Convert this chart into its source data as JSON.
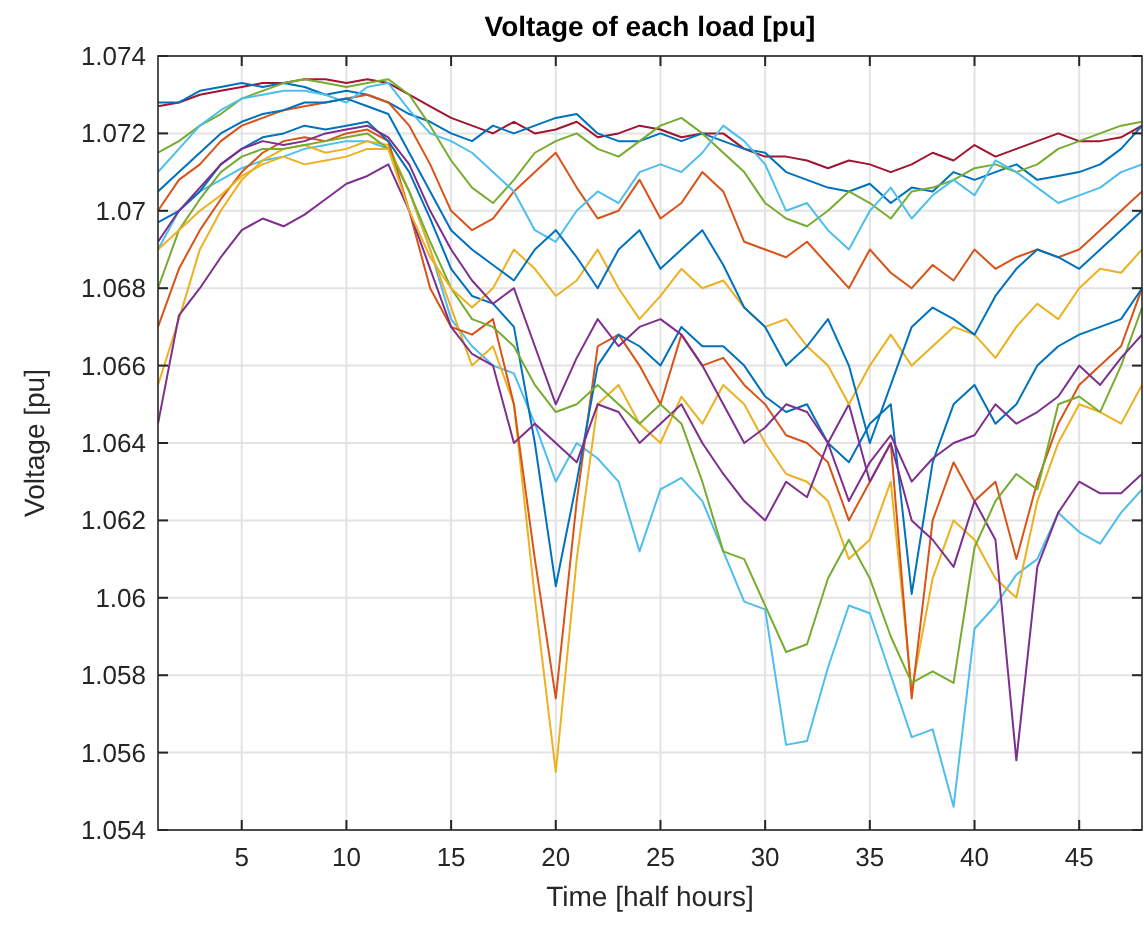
{
  "chart_data": {
    "type": "line",
    "title": "Voltage of each load [pu]",
    "xlabel": "Time [half hours]",
    "ylabel": "Voltage [pu]",
    "x": [
      1,
      2,
      3,
      4,
      5,
      6,
      7,
      8,
      9,
      10,
      11,
      12,
      13,
      14,
      15,
      16,
      17,
      18,
      19,
      20,
      21,
      22,
      23,
      24,
      25,
      26,
      27,
      28,
      29,
      30,
      31,
      32,
      33,
      34,
      35,
      36,
      37,
      38,
      39,
      40,
      41,
      42,
      43,
      44,
      45,
      46,
      47,
      48
    ],
    "xlim": [
      1,
      48
    ],
    "xticks": [
      5,
      10,
      15,
      20,
      25,
      30,
      35,
      40,
      45
    ],
    "ylim": [
      1.054,
      1.074
    ],
    "yticks": [
      1.054,
      1.056,
      1.058,
      1.06,
      1.062,
      1.064,
      1.066,
      1.068,
      1.07,
      1.072,
      1.074
    ],
    "grid": true,
    "series": [
      {
        "color": "#a2142f",
        "values": [
          1.0727,
          1.0728,
          1.073,
          1.0731,
          1.0732,
          1.0733,
          1.0733,
          1.0734,
          1.0734,
          1.0733,
          1.0734,
          1.0733,
          1.073,
          1.0727,
          1.0724,
          1.0722,
          1.072,
          1.0723,
          1.072,
          1.0721,
          1.0723,
          1.0719,
          1.072,
          1.0722,
          1.0721,
          1.0719,
          1.072,
          1.072,
          1.0716,
          1.0714,
          1.0714,
          1.0713,
          1.0711,
          1.0713,
          1.0712,
          1.071,
          1.0712,
          1.0715,
          1.0713,
          1.0717,
          1.0714,
          1.0716,
          1.0718,
          1.072,
          1.0718,
          1.0718,
          1.0719,
          1.0722
        ]
      },
      {
        "color": "#4dbeee",
        "values": [
          1.069,
          1.07,
          1.0705,
          1.0708,
          1.0711,
          1.0713,
          1.0714,
          1.0716,
          1.0717,
          1.0718,
          1.0718,
          1.0716,
          1.0705,
          1.069,
          1.0672,
          1.0665,
          1.066,
          1.0658,
          1.0645,
          1.063,
          1.064,
          1.0636,
          1.063,
          1.0612,
          1.0628,
          1.0631,
          1.0625,
          1.0612,
          1.0599,
          1.0597,
          1.0562,
          1.0563,
          1.0582,
          1.0598,
          1.0596,
          1.058,
          1.0564,
          1.0566,
          1.0546,
          1.0592,
          1.0598,
          1.0606,
          1.061,
          1.0622,
          1.0617,
          1.0614,
          1.0622,
          1.0628
        ]
      },
      {
        "color": "#edb120",
        "values": [
          1.0655,
          1.0672,
          1.069,
          1.07,
          1.0708,
          1.0713,
          1.0716,
          1.0717,
          1.0715,
          1.0716,
          1.0718,
          1.0717,
          1.0705,
          1.069,
          1.0675,
          1.066,
          1.0665,
          1.065,
          1.06,
          1.0555,
          1.061,
          1.065,
          1.0655,
          1.0645,
          1.064,
          1.0652,
          1.0645,
          1.0655,
          1.065,
          1.064,
          1.0632,
          1.063,
          1.0625,
          1.061,
          1.0615,
          1.063,
          1.0576,
          1.0605,
          1.062,
          1.0615,
          1.0605,
          1.06,
          1.0625,
          1.064,
          1.065,
          1.0648,
          1.0645,
          1.0655
        ]
      },
      {
        "color": "#d95319",
        "values": [
          1.067,
          1.0685,
          1.0695,
          1.0703,
          1.071,
          1.0715,
          1.0718,
          1.0719,
          1.0718,
          1.072,
          1.0721,
          1.0718,
          1.07,
          1.068,
          1.067,
          1.0668,
          1.0672,
          1.065,
          1.061,
          1.0574,
          1.0625,
          1.0665,
          1.0668,
          1.066,
          1.065,
          1.0668,
          1.066,
          1.0662,
          1.0655,
          1.065,
          1.0642,
          1.064,
          1.0635,
          1.062,
          1.063,
          1.064,
          1.0574,
          1.062,
          1.0635,
          1.0625,
          1.063,
          1.061,
          1.063,
          1.0645,
          1.0655,
          1.066,
          1.0665,
          1.068
        ]
      },
      {
        "color": "#0072bd",
        "values": [
          1.0697,
          1.07,
          1.0705,
          1.0712,
          1.0716,
          1.0719,
          1.072,
          1.0722,
          1.0721,
          1.0722,
          1.0723,
          1.0718,
          1.071,
          1.0698,
          1.0685,
          1.0678,
          1.0676,
          1.067,
          1.064,
          1.0603,
          1.063,
          1.066,
          1.0668,
          1.0665,
          1.066,
          1.067,
          1.0665,
          1.0665,
          1.066,
          1.0652,
          1.0648,
          1.065,
          1.064,
          1.0635,
          1.0645,
          1.065,
          1.0601,
          1.0635,
          1.065,
          1.0655,
          1.0645,
          1.065,
          1.066,
          1.0665,
          1.0668,
          1.067,
          1.0672,
          1.068
        ]
      },
      {
        "color": "#7e2f8e",
        "values": [
          1.0645,
          1.0673,
          1.068,
          1.0688,
          1.0695,
          1.0698,
          1.0696,
          1.0699,
          1.0703,
          1.0707,
          1.0709,
          1.0712,
          1.07,
          1.0685,
          1.067,
          1.0663,
          1.066,
          1.064,
          1.0645,
          1.064,
          1.0635,
          1.065,
          1.0648,
          1.064,
          1.0645,
          1.065,
          1.064,
          1.0632,
          1.0625,
          1.062,
          1.063,
          1.0626,
          1.064,
          1.065,
          1.063,
          1.064,
          1.062,
          1.0615,
          1.0608,
          1.0625,
          1.0615,
          1.0558,
          1.0608,
          1.0622,
          1.063,
          1.0627,
          1.0627,
          1.0632
        ]
      },
      {
        "color": "#77ac30",
        "values": [
          1.068,
          1.0695,
          1.0703,
          1.071,
          1.0714,
          1.0716,
          1.0716,
          1.0717,
          1.0718,
          1.0719,
          1.072,
          1.0716,
          1.0705,
          1.0692,
          1.068,
          1.0672,
          1.067,
          1.0665,
          1.0655,
          1.0648,
          1.065,
          1.0655,
          1.065,
          1.0645,
          1.065,
          1.0645,
          1.063,
          1.0612,
          1.061,
          1.0598,
          1.0586,
          1.0588,
          1.0605,
          1.0615,
          1.0605,
          1.059,
          1.0578,
          1.0581,
          1.0578,
          1.0613,
          1.0625,
          1.0632,
          1.0628,
          1.065,
          1.0652,
          1.0648,
          1.066,
          1.0675
        ]
      },
      {
        "color": "#0072bd",
        "values": [
          1.0728,
          1.0728,
          1.0731,
          1.0732,
          1.0733,
          1.0732,
          1.0733,
          1.0732,
          1.073,
          1.0731,
          1.073,
          1.0728,
          1.0725,
          1.0723,
          1.072,
          1.0718,
          1.0722,
          1.072,
          1.0722,
          1.0724,
          1.0725,
          1.072,
          1.0718,
          1.0718,
          1.072,
          1.0718,
          1.072,
          1.0718,
          1.0716,
          1.0715,
          1.071,
          1.0708,
          1.0706,
          1.0705,
          1.0707,
          1.0702,
          1.0706,
          1.0705,
          1.071,
          1.0708,
          1.071,
          1.0712,
          1.0708,
          1.0709,
          1.071,
          1.0712,
          1.0716,
          1.0722
        ]
      },
      {
        "color": "#77ac30",
        "values": [
          1.0715,
          1.0718,
          1.0722,
          1.0725,
          1.0729,
          1.0731,
          1.0733,
          1.0734,
          1.0733,
          1.0732,
          1.0733,
          1.0734,
          1.073,
          1.0722,
          1.0713,
          1.0706,
          1.0702,
          1.0708,
          1.0715,
          1.0718,
          1.072,
          1.0716,
          1.0714,
          1.0718,
          1.0722,
          1.0724,
          1.072,
          1.0715,
          1.071,
          1.0702,
          1.0698,
          1.0696,
          1.07,
          1.0705,
          1.0702,
          1.0698,
          1.0705,
          1.0706,
          1.0708,
          1.0711,
          1.0712,
          1.071,
          1.0712,
          1.0716,
          1.0718,
          1.072,
          1.0722,
          1.0723
        ]
      },
      {
        "color": "#d95319",
        "values": [
          1.07,
          1.0708,
          1.0712,
          1.0718,
          1.0722,
          1.0724,
          1.0726,
          1.0727,
          1.0728,
          1.0729,
          1.073,
          1.0728,
          1.0722,
          1.0712,
          1.07,
          1.0695,
          1.0698,
          1.0705,
          1.071,
          1.0715,
          1.0706,
          1.0698,
          1.07,
          1.0708,
          1.0698,
          1.0702,
          1.071,
          1.0705,
          1.0692,
          1.069,
          1.0688,
          1.0692,
          1.0686,
          1.068,
          1.069,
          1.0684,
          1.068,
          1.0686,
          1.0682,
          1.069,
          1.0685,
          1.0688,
          1.069,
          1.0688,
          1.069,
          1.0695,
          1.07,
          1.0705
        ]
      },
      {
        "color": "#4dbeee",
        "values": [
          1.071,
          1.0716,
          1.0722,
          1.0726,
          1.0729,
          1.073,
          1.0731,
          1.0731,
          1.073,
          1.0728,
          1.0732,
          1.0733,
          1.0726,
          1.072,
          1.0718,
          1.0715,
          1.071,
          1.0705,
          1.0695,
          1.0692,
          1.07,
          1.0705,
          1.0702,
          1.071,
          1.0712,
          1.071,
          1.0715,
          1.0722,
          1.0718,
          1.0712,
          1.07,
          1.0702,
          1.0695,
          1.069,
          1.07,
          1.0706,
          1.0698,
          1.0704,
          1.0708,
          1.0704,
          1.0713,
          1.071,
          1.0706,
          1.0702,
          1.0704,
          1.0706,
          1.071,
          1.0712
        ]
      },
      {
        "color": "#edb120",
        "values": [
          1.069,
          1.0695,
          1.07,
          1.0704,
          1.0709,
          1.0712,
          1.0714,
          1.0712,
          1.0713,
          1.0714,
          1.0716,
          1.0716,
          1.07,
          1.0688,
          1.068,
          1.0675,
          1.068,
          1.069,
          1.0685,
          1.0678,
          1.0682,
          1.069,
          1.068,
          1.0672,
          1.0678,
          1.0685,
          1.068,
          1.0682,
          1.0675,
          1.067,
          1.0672,
          1.0665,
          1.066,
          1.065,
          1.066,
          1.0668,
          1.066,
          1.0665,
          1.067,
          1.0668,
          1.0662,
          1.067,
          1.0676,
          1.0672,
          1.068,
          1.0685,
          1.0684,
          1.069
        ]
      },
      {
        "color": "#7e2f8e",
        "values": [
          1.0692,
          1.07,
          1.0706,
          1.0712,
          1.0716,
          1.0718,
          1.0717,
          1.0718,
          1.072,
          1.0721,
          1.0722,
          1.0719,
          1.0712,
          1.07,
          1.069,
          1.0682,
          1.0676,
          1.068,
          1.0665,
          1.065,
          1.0662,
          1.0672,
          1.0665,
          1.067,
          1.0672,
          1.0668,
          1.066,
          1.065,
          1.064,
          1.0644,
          1.065,
          1.0648,
          1.064,
          1.0625,
          1.0635,
          1.0642,
          1.063,
          1.0636,
          1.064,
          1.0642,
          1.065,
          1.0645,
          1.0648,
          1.0652,
          1.066,
          1.0655,
          1.0662,
          1.0668
        ]
      },
      {
        "color": "#0072bd",
        "values": [
          1.0705,
          1.071,
          1.0715,
          1.072,
          1.0723,
          1.0725,
          1.0726,
          1.0728,
          1.0728,
          1.0729,
          1.0727,
          1.0725,
          1.0715,
          1.0705,
          1.0695,
          1.069,
          1.0686,
          1.0682,
          1.069,
          1.0695,
          1.0688,
          1.068,
          1.069,
          1.0695,
          1.0685,
          1.069,
          1.0695,
          1.0686,
          1.0675,
          1.067,
          1.066,
          1.0665,
          1.0672,
          1.066,
          1.064,
          1.0655,
          1.067,
          1.0675,
          1.0672,
          1.0668,
          1.0678,
          1.0685,
          1.069,
          1.0688,
          1.0685,
          1.069,
          1.0695,
          1.07
        ]
      }
    ]
  }
}
